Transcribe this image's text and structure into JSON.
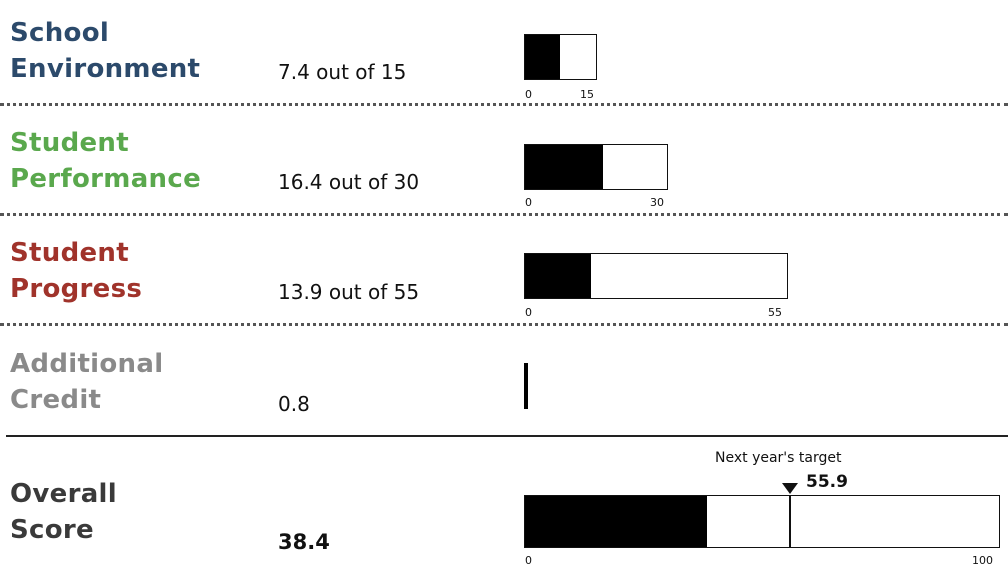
{
  "rows": [
    {
      "label_line1": "School",
      "label_line2": "Environment",
      "color": "#2c4a6b",
      "value_text": "7.4 out of 15",
      "value": 7.4,
      "max": 15,
      "tick_min": "0",
      "tick_max": "15"
    },
    {
      "label_line1": "Student",
      "label_line2": "Performance",
      "color": "#5aa84d",
      "value_text": "16.4 out of 30",
      "value": 16.4,
      "max": 30,
      "tick_min": "0",
      "tick_max": "30"
    },
    {
      "label_line1": "Student",
      "label_line2": "Progress",
      "color": "#a0332b",
      "value_text": "13.9 out of 55",
      "value": 13.9,
      "max": 55,
      "tick_min": "0",
      "tick_max": "55"
    },
    {
      "label_line1": "Additional",
      "label_line2": "Credit",
      "color": "#8a8a8a",
      "value_text": "0.8",
      "value": 0.8
    }
  ],
  "overall": {
    "label_line1": "Overall",
    "label_line2": "Score",
    "color": "#3a3a3a",
    "value_text": "38.4",
    "value": 38.4,
    "max": 100,
    "tick_min": "0",
    "tick_max": "100",
    "target_caption": "Next year's target",
    "target_text": "55.9",
    "target_value": 55.9
  },
  "chart_data": {
    "type": "bar",
    "categories": [
      "School Environment",
      "Student Performance",
      "Student Progress",
      "Additional Credit",
      "Overall Score"
    ],
    "values": [
      7.4,
      16.4,
      13.9,
      0.8,
      38.4
    ],
    "maxima": [
      15,
      30,
      55,
      null,
      100
    ],
    "target": {
      "category": "Overall Score",
      "value": 55.9,
      "label": "Next year's target"
    },
    "title": "",
    "xlabel": "",
    "ylabel": ""
  }
}
